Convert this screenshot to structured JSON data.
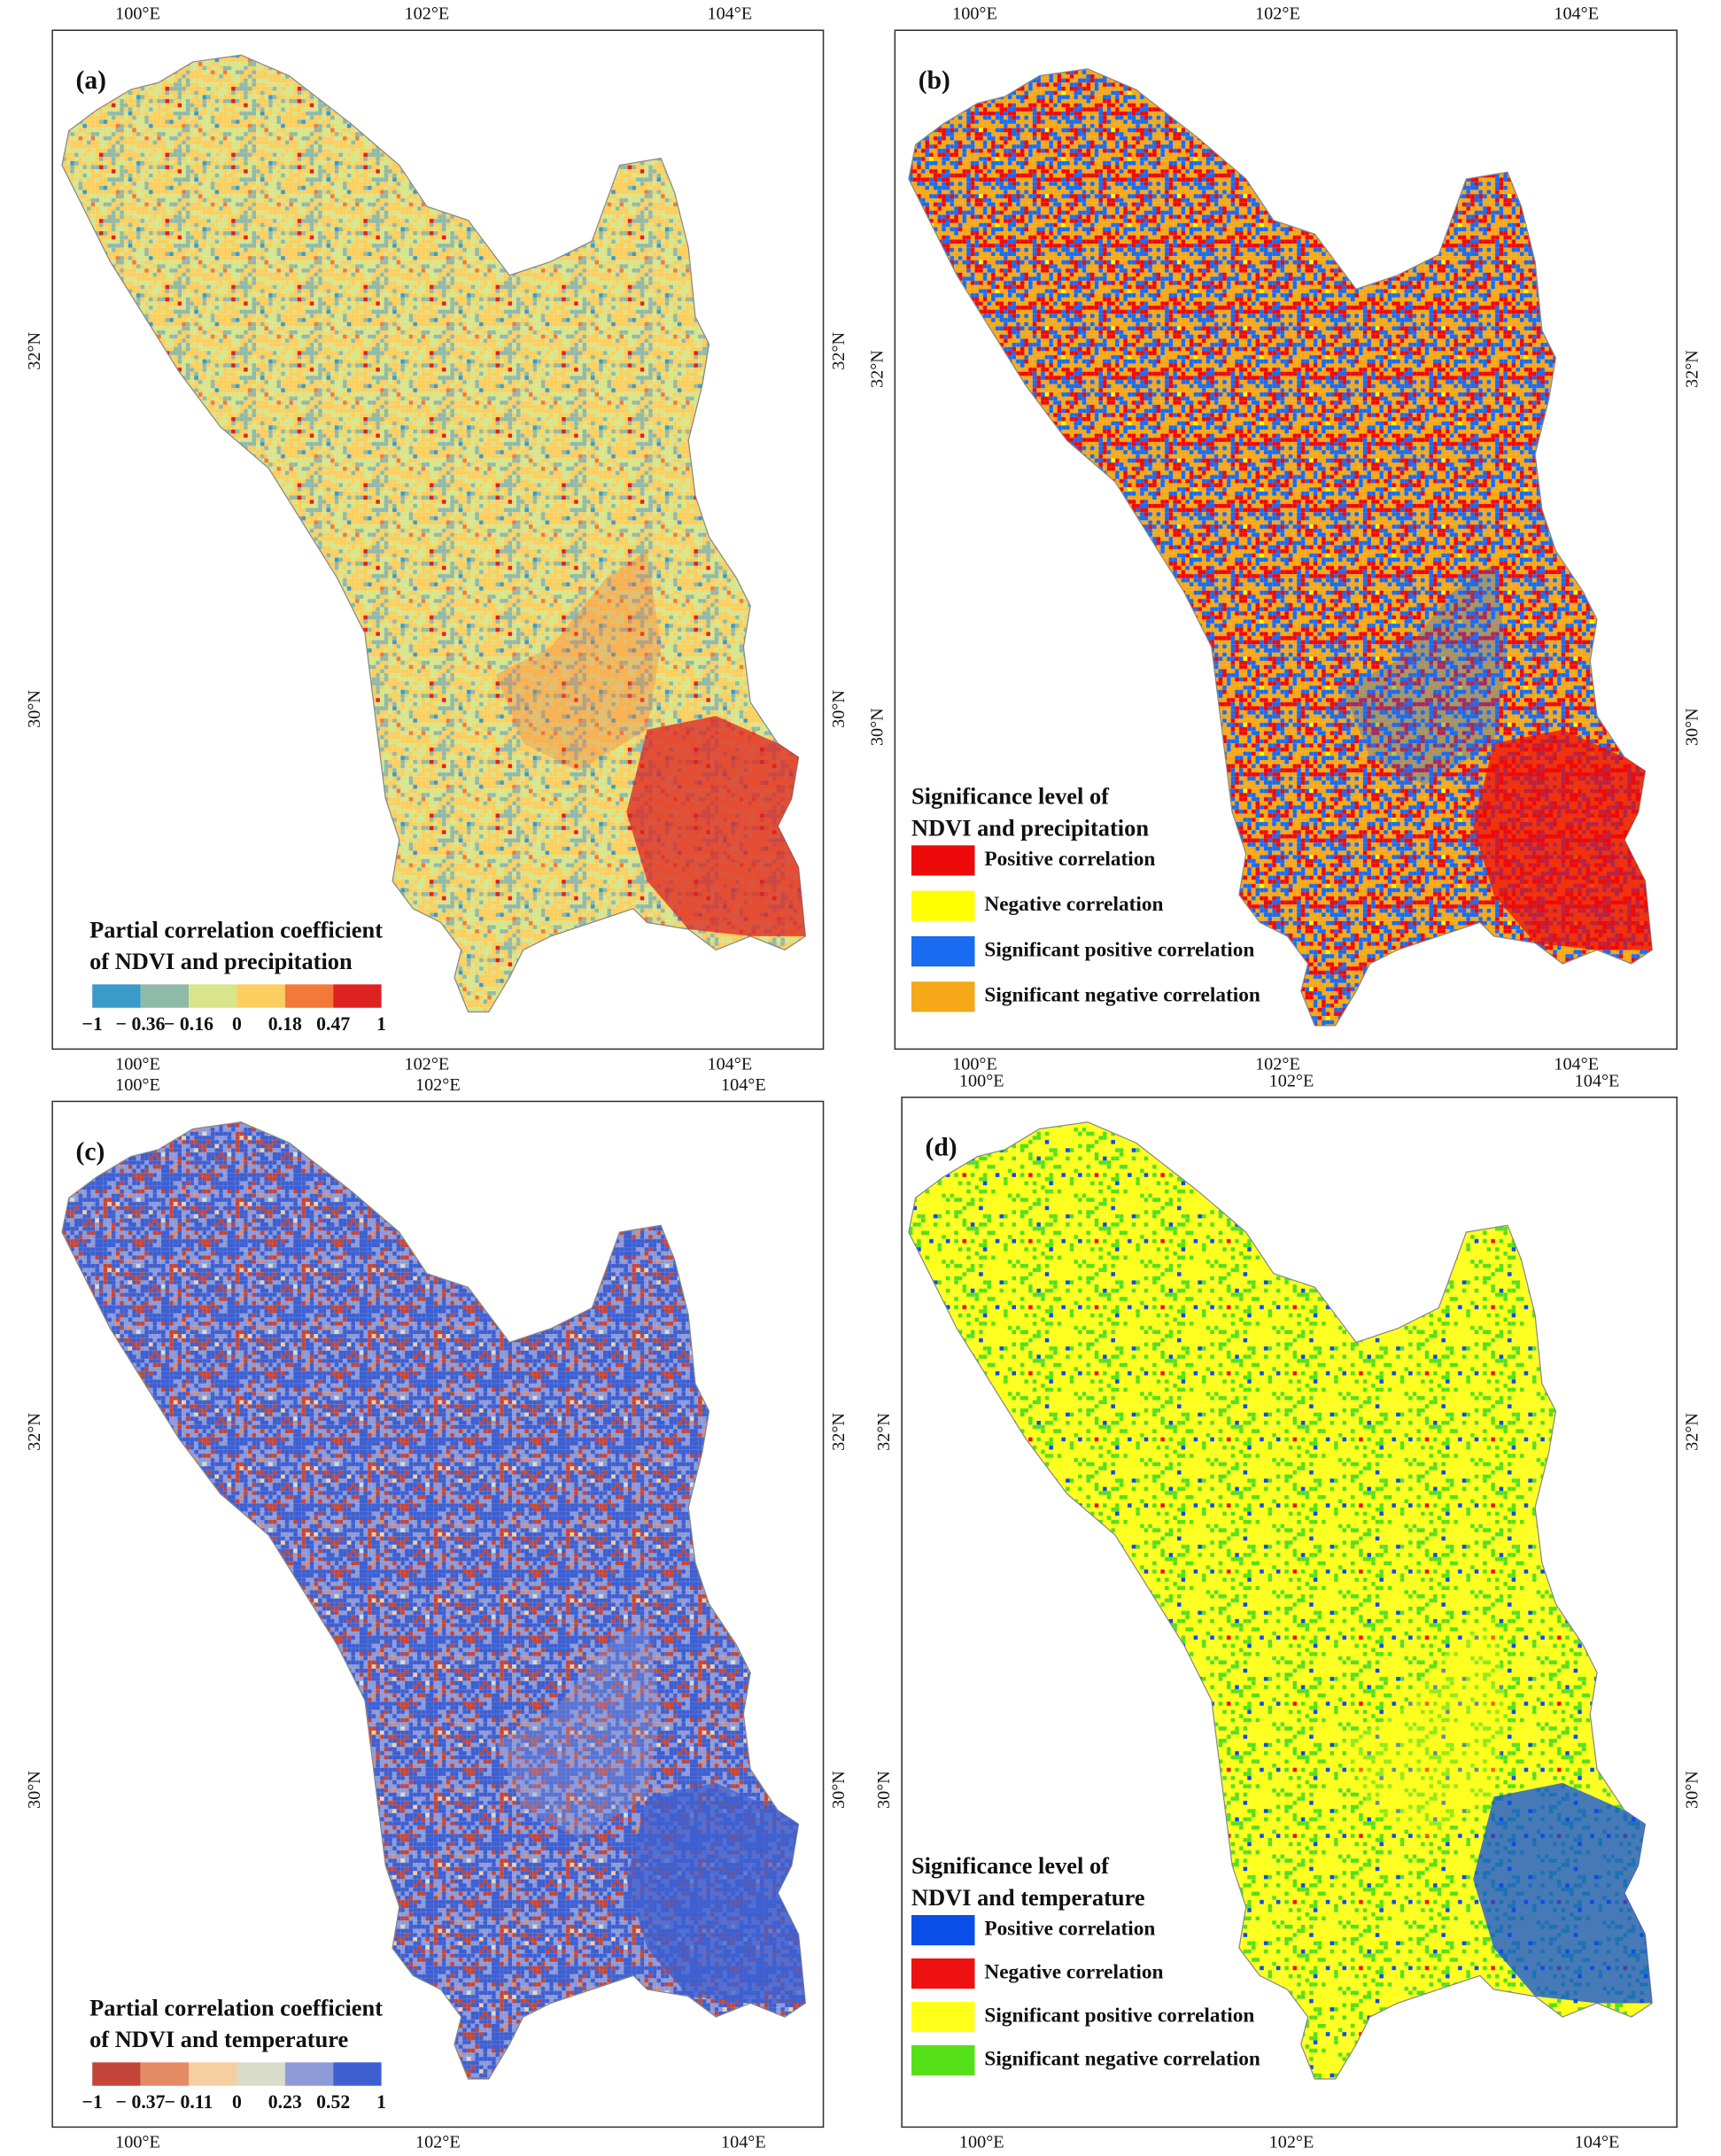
{
  "panels": [
    {
      "label": "(a)",
      "x_ticks": [
        "100°E",
        "102°E",
        "104°E"
      ],
      "y_ticks": [
        "32°N",
        "30°N"
      ],
      "legend": {
        "title": [
          "Partial correlation coefficient",
          "of NDVI and precipitation"
        ],
        "colors": [
          "#3a9bc8",
          "#8fb9a8",
          "#d8e58a",
          "#fbcf5f",
          "#f3793a",
          "#dd2222"
        ],
        "labels": [
          "−1",
          "− 0.36",
          "− 0.16",
          "0",
          "0.18",
          "0.47",
          "1"
        ]
      }
    },
    {
      "label": "(b)",
      "x_ticks": [
        "100°E",
        "102°E",
        "104°E"
      ],
      "y_ticks": [
        "32°N",
        "30°N"
      ],
      "legend": {
        "title": [
          "Significance level of",
          "NDVI and precipitation"
        ],
        "items": [
          {
            "name": "Positive correlation",
            "color": "#ee0a0a"
          },
          {
            "name": "Negative correlation",
            "color": "#ffff00"
          },
          {
            "name": "Significant positive correlation",
            "color": "#1a6cf0"
          },
          {
            "name": "Significant negative correlation",
            "color": "#f5a818"
          }
        ]
      }
    },
    {
      "label": "(c)",
      "x_ticks": [
        "100°E",
        "102°E",
        "104°E"
      ],
      "y_ticks": [
        "32°N",
        "30°N"
      ],
      "legend": {
        "title": [
          "Partial correlation coefficient",
          "of NDVI and temperature"
        ],
        "colors": [
          "#c4463a",
          "#e48a64",
          "#f5cfa0",
          "#d9dcc8",
          "#8e9ad8",
          "#3e5fd0"
        ],
        "labels": [
          "−1",
          "− 0.37",
          "− 0.11",
          "0",
          "0.23",
          "0.52",
          "1"
        ]
      }
    },
    {
      "label": "(d)",
      "x_ticks": [
        "100°E",
        "102°E",
        "104°E"
      ],
      "y_ticks": [
        "32°N",
        "30°N"
      ],
      "legend": {
        "title": [
          "Significance level of",
          "NDVI and temperature"
        ],
        "items": [
          {
            "name": "Positive correlation",
            "color": "#0a4ee8"
          },
          {
            "name": "Negative correlation",
            "color": "#ee1111"
          },
          {
            "name": "Significant positive correlation",
            "color": "#ffff1a"
          },
          {
            "name": "Significant negative correlation",
            "color": "#55e01a"
          }
        ]
      }
    }
  ]
}
